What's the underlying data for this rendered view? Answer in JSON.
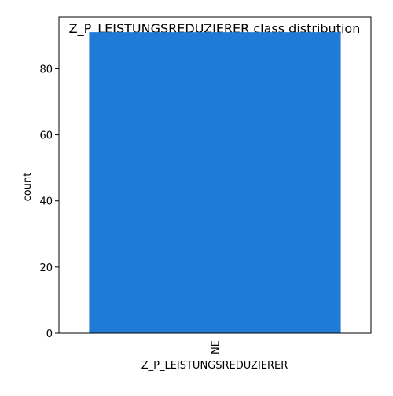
{
  "chart_data": {
    "type": "bar",
    "title": "Z_P_LEISTUNGSREDUZIERER class distribution",
    "xlabel": "Z_P_LEISTUNGSREDUZIERER",
    "ylabel": "count",
    "categories": [
      "NE"
    ],
    "values": [
      91
    ],
    "ylim": [
      0,
      95.55
    ],
    "yticks": [
      0,
      20,
      40,
      60,
      80
    ],
    "grid": false,
    "legend": "none",
    "bar_color": "#1f7bd6"
  }
}
